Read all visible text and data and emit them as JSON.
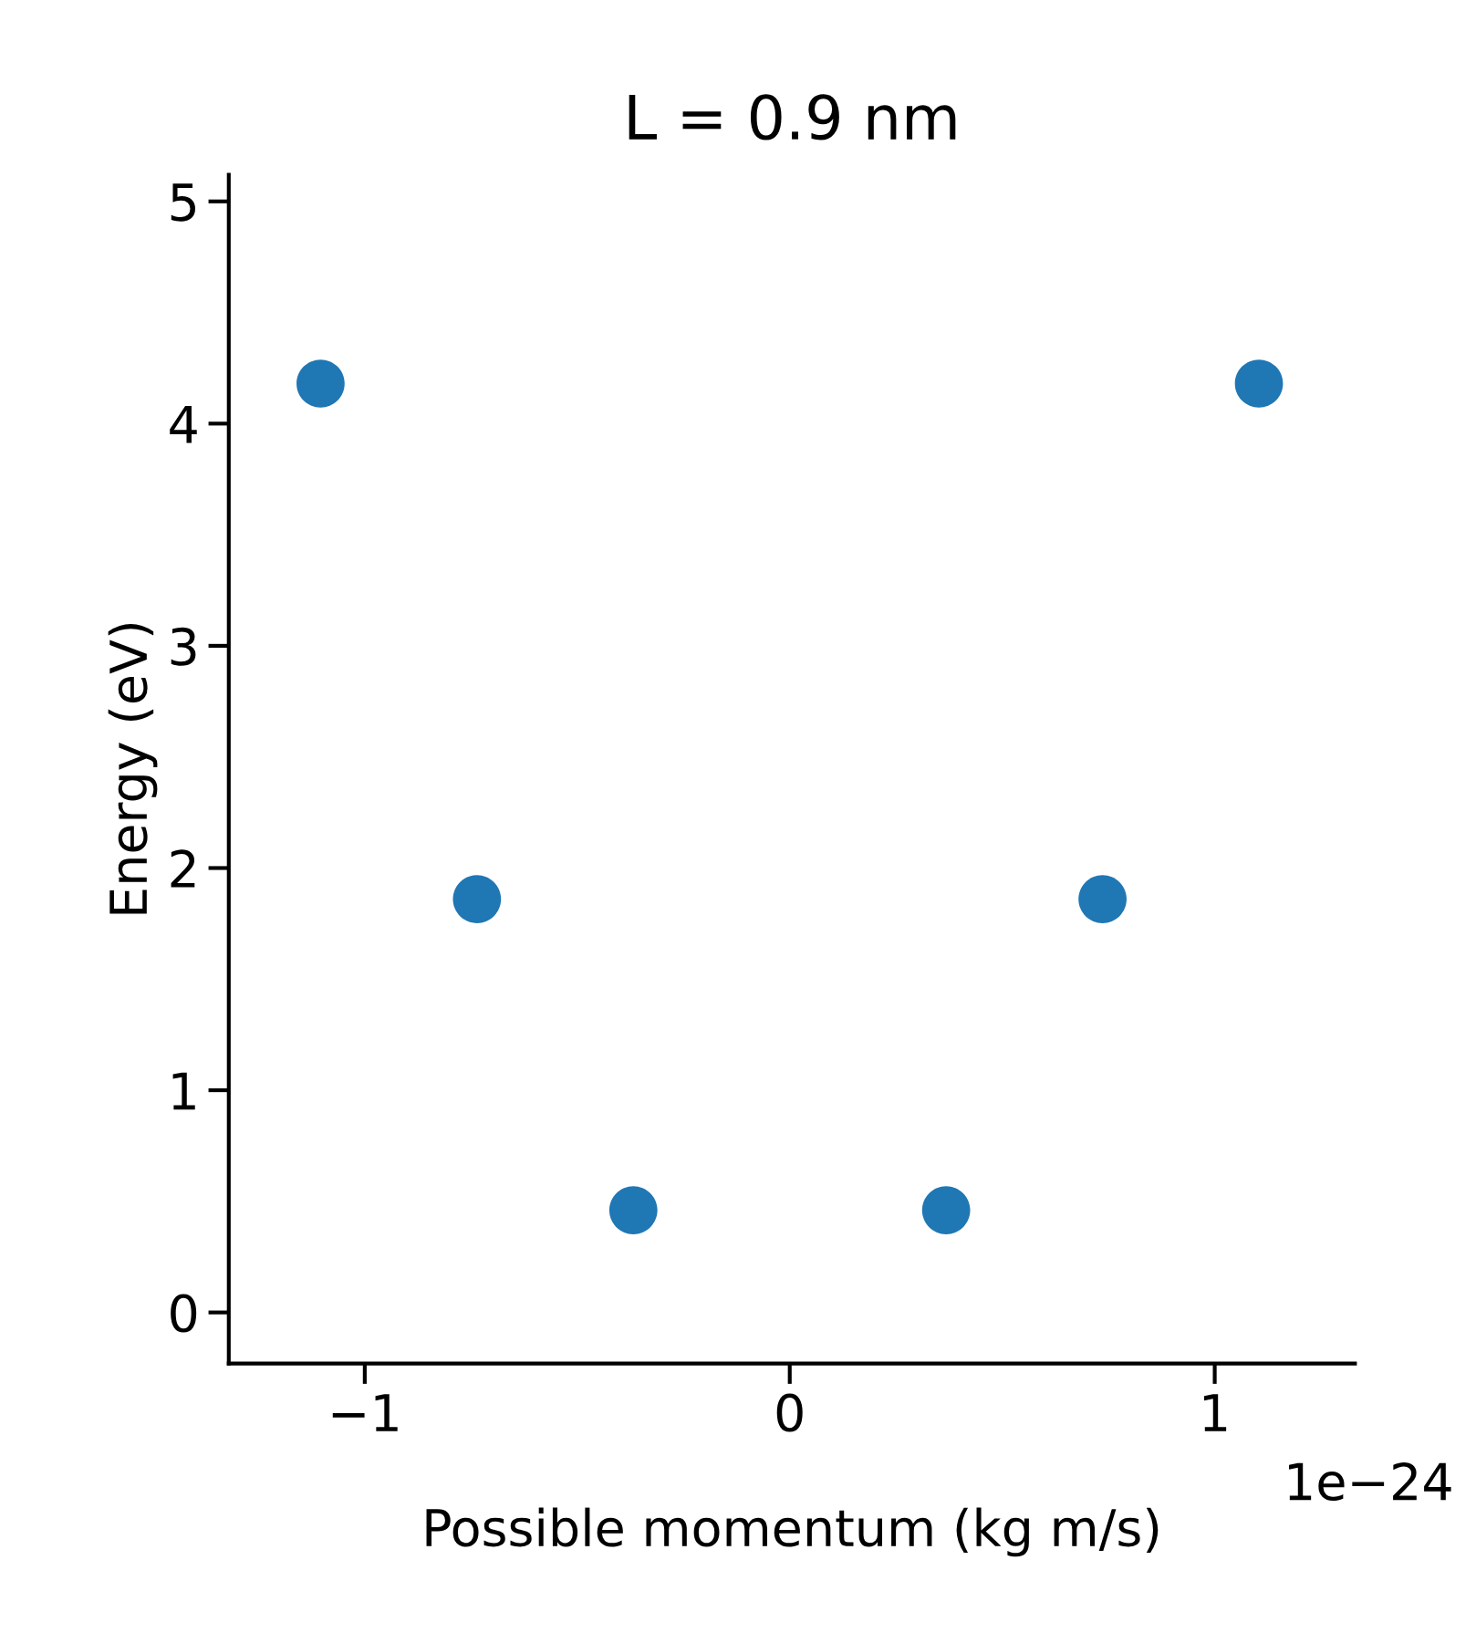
{
  "chart_data": {
    "type": "scatter",
    "title": "L = 0.9 nm",
    "xlabel": "Possible momentum (kg m/s)",
    "ylabel": "Energy (eV)",
    "x": [
      -1.104,
      -0.736,
      -0.368,
      0.368,
      0.736,
      1.104
    ],
    "series": [
      {
        "color": "#1f77b4",
        "values": [
          4.18,
          1.86,
          0.46,
          0.46,
          1.86,
          4.18
        ]
      }
    ],
    "marker": "circle",
    "xlim": [
      -1.32,
      1.33
    ],
    "ylim": [
      -0.23,
      5.12
    ],
    "xticks": [
      {
        "value": -1,
        "label": "−1"
      },
      0,
      1
    ],
    "yticks": [
      0,
      1,
      2,
      3,
      4,
      5
    ],
    "annotations": [
      "1e−24"
    ],
    "grid": false,
    "legend": false
  }
}
